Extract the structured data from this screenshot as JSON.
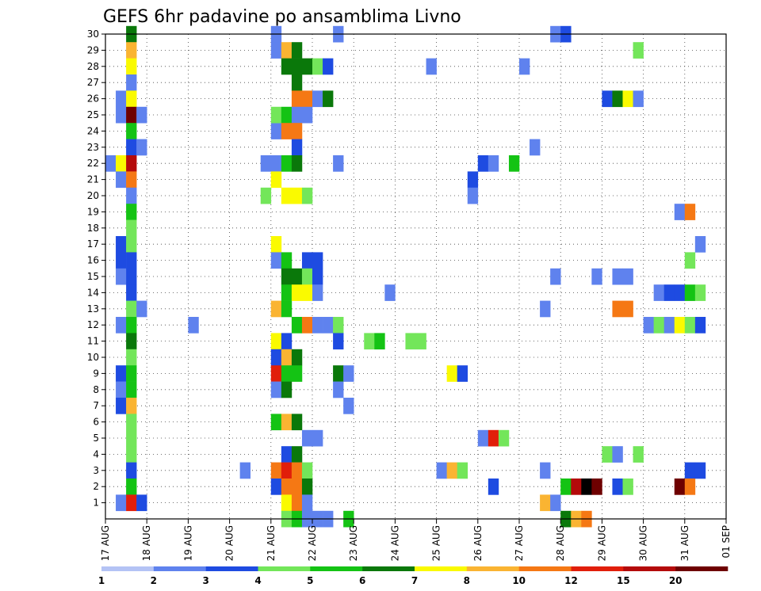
{
  "chart_data": {
    "type": "heatmap",
    "title": "GEFS 6hr padavine po ansamblima Livno",
    "xlabel": "",
    "ylabel": "",
    "x_tick_labels": [
      "17 AUG",
      "18 AUG",
      "19 AUG",
      "20 AUG",
      "21 AUG",
      "22 AUG",
      "23 AUG",
      "24 AUG",
      "25 AUG",
      "26 AUG",
      "27 AUG",
      "28 AUG",
      "29 AUG",
      "30 AUG",
      "31 AUG",
      "01 SEP"
    ],
    "y_tick_labels": [
      "1",
      "2",
      "3",
      "4",
      "5",
      "6",
      "7",
      "8",
      "9",
      "10",
      "11",
      "12",
      "13",
      "14",
      "15",
      "16",
      "17",
      "18",
      "19",
      "20",
      "21",
      "22",
      "23",
      "24",
      "25",
      "26",
      "27",
      "28",
      "29",
      "30"
    ],
    "x_range_steps": [
      0,
      60
    ],
    "y_range_members": [
      0,
      30
    ],
    "grid": true,
    "legend": {
      "placement": "bottom",
      "levels": [
        "1",
        "2",
        "3",
        "4",
        "5",
        "6",
        "7",
        "8",
        "10",
        "12",
        "15",
        "20"
      ],
      "colors": [
        "#b4c3f5",
        "#5f82ee",
        "#1e4be1",
        "#73e65a",
        "#14c314",
        "#0a780a",
        "#fafa00",
        "#fab432",
        "#f57814",
        "#e11e0a",
        "#b40a0a",
        "#6e0000"
      ]
    },
    "cells": [
      [
        0,
        22,
        1
      ],
      [
        1,
        22,
        6
      ],
      [
        1,
        26,
        1
      ],
      [
        1,
        25,
        1
      ],
      [
        1,
        16,
        2
      ],
      [
        1,
        17,
        2
      ],
      [
        1,
        15,
        1
      ],
      [
        1,
        12,
        1
      ],
      [
        1,
        9,
        2
      ],
      [
        1,
        8,
        1
      ],
      [
        1,
        7,
        2
      ],
      [
        1,
        21,
        1
      ],
      [
        1,
        1,
        1
      ],
      [
        2,
        30,
        5
      ],
      [
        2,
        29,
        7
      ],
      [
        2,
        28,
        6
      ],
      [
        2,
        27,
        1
      ],
      [
        2,
        26,
        6
      ],
      [
        2,
        25,
        11
      ],
      [
        2,
        24,
        4
      ],
      [
        2,
        23,
        2
      ],
      [
        2,
        22,
        10
      ],
      [
        2,
        21,
        8
      ],
      [
        2,
        20,
        1
      ],
      [
        2,
        19,
        4
      ],
      [
        2,
        18,
        3
      ],
      [
        2,
        17,
        3
      ],
      [
        2,
        16,
        2
      ],
      [
        2,
        15,
        2
      ],
      [
        2,
        14,
        2
      ],
      [
        2,
        13,
        3
      ],
      [
        2,
        12,
        4
      ],
      [
        2,
        11,
        5
      ],
      [
        2,
        10,
        3
      ],
      [
        2,
        9,
        4
      ],
      [
        2,
        8,
        4
      ],
      [
        2,
        7,
        7
      ],
      [
        2,
        6,
        3
      ],
      [
        2,
        5,
        3
      ],
      [
        2,
        4,
        3
      ],
      [
        2,
        3,
        2
      ],
      [
        2,
        2,
        4
      ],
      [
        2,
        1,
        9
      ],
      [
        3,
        25,
        1
      ],
      [
        3,
        23,
        1
      ],
      [
        3,
        13,
        1
      ],
      [
        3,
        1,
        2
      ],
      [
        8,
        12,
        1
      ],
      [
        13,
        3,
        1
      ],
      [
        15,
        20,
        3
      ],
      [
        15,
        22,
        1
      ],
      [
        16,
        30,
        1
      ],
      [
        16,
        29,
        1
      ],
      [
        16,
        24,
        1
      ],
      [
        16,
        25,
        3
      ],
      [
        16,
        22,
        1
      ],
      [
        16,
        21,
        6
      ],
      [
        16,
        17,
        6
      ],
      [
        16,
        16,
        1
      ],
      [
        16,
        13,
        7
      ],
      [
        16,
        11,
        6
      ],
      [
        16,
        10,
        2
      ],
      [
        16,
        9,
        9
      ],
      [
        16,
        8,
        1
      ],
      [
        16,
        6,
        4
      ],
      [
        16,
        3,
        8
      ],
      [
        16,
        2,
        2
      ],
      [
        17,
        29,
        7
      ],
      [
        17,
        28,
        5
      ],
      [
        17,
        25,
        4
      ],
      [
        17,
        24,
        8
      ],
      [
        17,
        22,
        4
      ],
      [
        17,
        20,
        6
      ],
      [
        17,
        16,
        4
      ],
      [
        17,
        15,
        5
      ],
      [
        17,
        14,
        4
      ],
      [
        17,
        13,
        4
      ],
      [
        17,
        11,
        2
      ],
      [
        17,
        10,
        7
      ],
      [
        17,
        9,
        4
      ],
      [
        17,
        8,
        5
      ],
      [
        17,
        6,
        7
      ],
      [
        17,
        4,
        2
      ],
      [
        17,
        3,
        9
      ],
      [
        17,
        2,
        8
      ],
      [
        17,
        1,
        6
      ],
      [
        17,
        0,
        3
      ],
      [
        18,
        29,
        5
      ],
      [
        18,
        28,
        5
      ],
      [
        18,
        27,
        5
      ],
      [
        18,
        26,
        8
      ],
      [
        18,
        25,
        1
      ],
      [
        18,
        24,
        8
      ],
      [
        18,
        23,
        2
      ],
      [
        18,
        22,
        5
      ],
      [
        18,
        20,
        6
      ],
      [
        18,
        15,
        5
      ],
      [
        18,
        14,
        6
      ],
      [
        18,
        12,
        4
      ],
      [
        18,
        10,
        5
      ],
      [
        18,
        9,
        4
      ],
      [
        18,
        6,
        5
      ],
      [
        18,
        4,
        5
      ],
      [
        18,
        3,
        8
      ],
      [
        18,
        2,
        8
      ],
      [
        18,
        1,
        8
      ],
      [
        18,
        0,
        4
      ],
      [
        19,
        28,
        5
      ],
      [
        19,
        26,
        8
      ],
      [
        19,
        25,
        1
      ],
      [
        19,
        20,
        3
      ],
      [
        19,
        16,
        2
      ],
      [
        19,
        15,
        3
      ],
      [
        19,
        14,
        6
      ],
      [
        19,
        12,
        8
      ],
      [
        19,
        5,
        1
      ],
      [
        19,
        3,
        3
      ],
      [
        19,
        2,
        5
      ],
      [
        19,
        1,
        1
      ],
      [
        19,
        0,
        1
      ],
      [
        20,
        28,
        3
      ],
      [
        20,
        26,
        1
      ],
      [
        20,
        16,
        2
      ],
      [
        20,
        15,
        2
      ],
      [
        20,
        14,
        1
      ],
      [
        20,
        12,
        1
      ],
      [
        20,
        5,
        1
      ],
      [
        20,
        0,
        1
      ],
      [
        21,
        28,
        2
      ],
      [
        21,
        26,
        5
      ],
      [
        21,
        12,
        1
      ],
      [
        21,
        0,
        1
      ],
      [
        22,
        30,
        1
      ],
      [
        22,
        22,
        1
      ],
      [
        22,
        12,
        3
      ],
      [
        22,
        11,
        2
      ],
      [
        22,
        9,
        5
      ],
      [
        22,
        8,
        1
      ],
      [
        23,
        9,
        1
      ],
      [
        23,
        7,
        1
      ],
      [
        23,
        0,
        4
      ],
      [
        25,
        11,
        3
      ],
      [
        26,
        11,
        4
      ],
      [
        27,
        14,
        1
      ],
      [
        29,
        11,
        3
      ],
      [
        30,
        11,
        3
      ],
      [
        31,
        28,
        1
      ],
      [
        32,
        3,
        1
      ],
      [
        33,
        9,
        6
      ],
      [
        33,
        3,
        7
      ],
      [
        34,
        9,
        2
      ],
      [
        34,
        3,
        3
      ],
      [
        35,
        21,
        2
      ],
      [
        35,
        20,
        1
      ],
      [
        36,
        22,
        2
      ],
      [
        36,
        5,
        1
      ],
      [
        37,
        22,
        1
      ],
      [
        37,
        5,
        9
      ],
      [
        37,
        2,
        2
      ],
      [
        38,
        5,
        3
      ],
      [
        39,
        22,
        4
      ],
      [
        40,
        28,
        1
      ],
      [
        41,
        23,
        1
      ],
      [
        42,
        13,
        1
      ],
      [
        42,
        3,
        1
      ],
      [
        42,
        1,
        7
      ],
      [
        43,
        30,
        1
      ],
      [
        43,
        15,
        1
      ],
      [
        43,
        1,
        1
      ],
      [
        44,
        30,
        2
      ],
      [
        44,
        2,
        4
      ],
      [
        44,
        0,
        5
      ],
      [
        45,
        2,
        10
      ],
      [
        45,
        0,
        7
      ],
      [
        46,
        2,
        12
      ],
      [
        46,
        0,
        8
      ],
      [
        47,
        15,
        1
      ],
      [
        47,
        2,
        11
      ],
      [
        48,
        26,
        2
      ],
      [
        48,
        4,
        3
      ],
      [
        49,
        26,
        5
      ],
      [
        49,
        15,
        1
      ],
      [
        49,
        13,
        8
      ],
      [
        49,
        4,
        1
      ],
      [
        49,
        2,
        2
      ],
      [
        50,
        26,
        6
      ],
      [
        50,
        15,
        1
      ],
      [
        50,
        13,
        8
      ],
      [
        50,
        2,
        3
      ],
      [
        51,
        29,
        3
      ],
      [
        51,
        26,
        1
      ],
      [
        51,
        4,
        3
      ],
      [
        52,
        12,
        1
      ],
      [
        53,
        12,
        3
      ],
      [
        53,
        14,
        1
      ],
      [
        54,
        12,
        1
      ],
      [
        54,
        14,
        2
      ],
      [
        55,
        19,
        1
      ],
      [
        55,
        14,
        2
      ],
      [
        55,
        12,
        6
      ],
      [
        55,
        2,
        11
      ],
      [
        56,
        19,
        8
      ],
      [
        56,
        16,
        3
      ],
      [
        56,
        14,
        4
      ],
      [
        56,
        12,
        3
      ],
      [
        56,
        3,
        2
      ],
      [
        56,
        2,
        8
      ],
      [
        57,
        17,
        1
      ],
      [
        57,
        14,
        3
      ],
      [
        57,
        12,
        2
      ],
      [
        57,
        3,
        2
      ]
    ]
  }
}
